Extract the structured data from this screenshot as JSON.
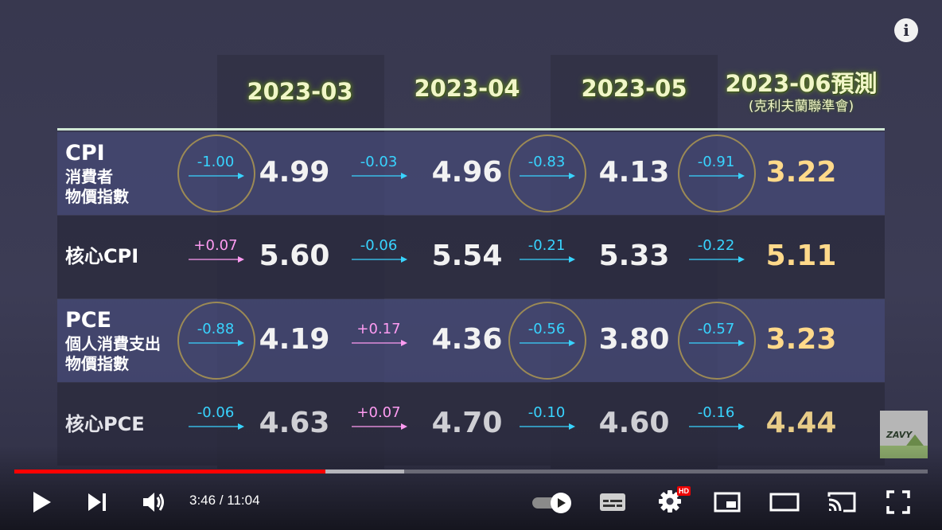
{
  "player": {
    "current_time": "3:46",
    "separator": " / ",
    "duration": "11:04",
    "progress_fraction": 0.341,
    "buffered_fraction": 0.427,
    "quality_badge": "HD",
    "info_glyph": "i",
    "accent_color": "#ff0000"
  },
  "table": {
    "headers": [
      {
        "title": "2023-03",
        "subtitle": ""
      },
      {
        "title": "2023-04",
        "subtitle": ""
      },
      {
        "title": "2023-05",
        "subtitle": ""
      },
      {
        "title": "2023-06預測",
        "subtitle": "(克利夫蘭聯準會)"
      }
    ],
    "rows": [
      {
        "label_main": "CPI",
        "label_sub": [
          "消費者",
          "物價指數"
        ],
        "values": [
          "4.99",
          "4.96",
          "4.13",
          "3.22"
        ],
        "deltas": [
          {
            "text": "-1.00",
            "sign": "neg",
            "circled": true
          },
          {
            "text": "-0.03",
            "sign": "neg",
            "circled": false
          },
          {
            "text": "-0.83",
            "sign": "neg",
            "circled": true
          },
          {
            "text": "-0.91",
            "sign": "neg",
            "circled": true
          }
        ]
      },
      {
        "label_main": "核心CPI",
        "label_sub": [],
        "values": [
          "5.60",
          "5.54",
          "5.33",
          "5.11"
        ],
        "deltas": [
          {
            "text": "+0.07",
            "sign": "pos",
            "circled": false
          },
          {
            "text": "-0.06",
            "sign": "neg",
            "circled": false
          },
          {
            "text": "-0.21",
            "sign": "neg",
            "circled": false
          },
          {
            "text": "-0.22",
            "sign": "neg",
            "circled": false
          }
        ]
      },
      {
        "label_main": "PCE",
        "label_sub": [
          "個人消費支出",
          "物價指數"
        ],
        "values": [
          "4.19",
          "4.36",
          "3.80",
          "3.23"
        ],
        "deltas": [
          {
            "text": "-0.88",
            "sign": "neg",
            "circled": true
          },
          {
            "text": "+0.17",
            "sign": "pos",
            "circled": false
          },
          {
            "text": "-0.56",
            "sign": "neg",
            "circled": true
          },
          {
            "text": "-0.57",
            "sign": "neg",
            "circled": true
          }
        ]
      },
      {
        "label_main": "核心PCE",
        "label_sub": [],
        "values": [
          "4.63",
          "4.70",
          "4.60",
          "4.44"
        ],
        "deltas": [
          {
            "text": "-0.06",
            "sign": "neg",
            "circled": false
          },
          {
            "text": "+0.07",
            "sign": "pos",
            "circled": false
          },
          {
            "text": "-0.10",
            "sign": "neg",
            "circled": false
          },
          {
            "text": "-0.16",
            "sign": "neg",
            "circled": false
          }
        ]
      }
    ]
  },
  "watermark_text": "ZAVY",
  "colors": {
    "negative_delta": "#38d4ff",
    "positive_delta": "#ff9cf2",
    "prediction_value": "#ffd98a",
    "header_text": "#f1f6c8"
  },
  "icons": [
    "play-icon",
    "next-icon",
    "volume-icon",
    "autoplay-toggle-icon",
    "subtitles-icon",
    "settings-icon",
    "miniplayer-icon",
    "theater-mode-icon",
    "cast-icon",
    "fullscreen-icon",
    "info-icon"
  ]
}
